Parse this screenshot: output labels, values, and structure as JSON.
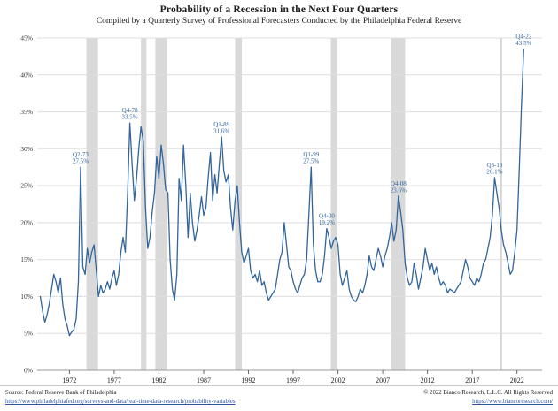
{
  "header": {
    "title": "Probability of a Recession in the Next Four Quarters",
    "subtitle": "Compiled by a Quarterly Survey of Professional Forecasters Conducted by the Philadelphia Federal Reserve"
  },
  "footer": {
    "source_label": "Source: Federal Reserve Bank of Philadelphia",
    "source_url": "https://www.philadelphiafed.org/surveys-and-data/real-time-data-research/probability-variables",
    "copyright": "© 2022 Bianco Research, L.L.C. All Rights Reserved",
    "site_url": "https://www.biancoresearch.com/"
  },
  "colors": {
    "line": "#31659c",
    "annotation": "#31659c",
    "recession_band": "#d9d9d9",
    "gridline": "#dedede",
    "link": "#2d53a0"
  },
  "chart_data": {
    "type": "line",
    "title": "Probability of a Recession in the Next Four Quarters",
    "subtitle": "Compiled by a Quarterly Survey of Professional Forecasters Conducted by the Philadelphia Federal Reserve",
    "xlabel": "",
    "ylabel": "",
    "ylim": [
      0,
      45
    ],
    "ytick_step": 5,
    "ytick_format": "percent",
    "xlim": [
      1968.4,
      2024.8
    ],
    "xticks": [
      1972,
      1977,
      1982,
      1987,
      1992,
      1997,
      2002,
      2007,
      2012,
      2017,
      2022
    ],
    "grid": "horizontal",
    "legend": "none",
    "line_color": "#31659c",
    "band_color": "#d9d9d9",
    "grid_color": "#dedede",
    "recession_bands": [
      [
        1973.9,
        1975.2
      ],
      [
        1980.0,
        1980.6
      ],
      [
        1981.6,
        1982.9
      ],
      [
        1990.5,
        1991.25
      ],
      [
        2001.2,
        2001.9
      ],
      [
        2007.95,
        2009.5
      ],
      [
        2020.1,
        2020.35
      ]
    ],
    "series": [
      {
        "name": "Probability of recession (mean, SPF)",
        "x_start": 1968.75,
        "x_step": 0.25,
        "values": [
          10,
          8,
          6.5,
          7.5,
          9,
          11,
          13,
          12,
          10.5,
          12.5,
          9,
          7,
          6,
          4.7,
          5.2,
          5.5,
          7,
          12,
          27.5,
          14,
          13,
          16.5,
          14.5,
          16,
          17,
          13.5,
          10,
          11.5,
          10.5,
          11,
          12,
          11,
          12.5,
          13.5,
          11.5,
          13,
          16,
          18,
          16,
          24,
          33.5,
          28,
          23,
          26,
          30,
          33,
          31,
          22,
          16.5,
          18,
          21.5,
          24,
          29,
          26,
          30.5,
          28,
          24.5,
          24,
          15,
          11,
          9.5,
          13,
          26,
          23,
          30.5,
          25,
          18,
          24,
          20,
          17.5,
          19,
          21,
          23.5,
          21,
          22,
          26,
          29.5,
          23,
          26.5,
          24,
          28,
          31.6,
          27,
          25.5,
          26.5,
          22,
          19,
          23,
          25,
          20,
          16,
          14.5,
          15.5,
          16.5,
          13.5,
          12.5,
          13,
          12,
          13.5,
          11.5,
          12,
          10.5,
          9.5,
          10,
          10.5,
          11,
          13,
          15,
          16,
          20,
          17,
          14,
          13.5,
          12,
          11,
          10.5,
          11.5,
          12.5,
          13,
          15,
          21,
          27.5,
          17,
          13.5,
          12,
          12,
          13,
          15.5,
          19.2,
          18,
          16.5,
          17.5,
          18,
          17,
          13,
          11.5,
          12.5,
          13.5,
          11,
          10,
          9.5,
          9.3,
          10,
          11,
          10.5,
          11.5,
          13,
          15.5,
          14,
          13.5,
          15,
          16.5,
          15.5,
          14,
          15.5,
          16.5,
          18,
          20,
          17.5,
          19,
          23.6,
          21.5,
          19,
          14.5,
          12.5,
          11.5,
          12,
          14.5,
          13,
          11,
          12.5,
          14,
          16.5,
          15,
          13.5,
          14.5,
          13,
          14,
          12.5,
          11.5,
          12,
          11.5,
          10.5,
          11,
          10.8,
          10.5,
          11,
          11.5,
          12,
          13.5,
          15,
          14,
          12.5,
          12,
          11.5,
          12.5,
          12,
          13,
          14.5,
          15,
          16.5,
          18,
          21,
          26.1,
          24,
          22,
          19,
          17,
          16,
          14.5,
          13,
          13.5,
          16,
          19,
          27,
          36,
          43.5
        ]
      }
    ],
    "annotations": [
      {
        "label": "Q2-73",
        "value": "27.5%",
        "x": 1973.25,
        "y": 27.5
      },
      {
        "label": "Q4-78",
        "value": "33.5%",
        "x": 1978.75,
        "y": 33.5
      },
      {
        "label": "Q1-89",
        "value": "31.6%",
        "x": 1989.0,
        "y": 31.6
      },
      {
        "label": "Q1-99",
        "value": "27.5%",
        "x": 1999.0,
        "y": 27.5
      },
      {
        "label": "Q4-00",
        "value": "19.2%",
        "x": 2000.75,
        "y": 19.2
      },
      {
        "label": "Q4-08",
        "value": "23.6%",
        "x": 2008.75,
        "y": 23.6
      },
      {
        "label": "Q3-19",
        "value": "26.1%",
        "x": 2019.5,
        "y": 26.1
      },
      {
        "label": "Q4-22",
        "value": "43.5%",
        "x": 2022.75,
        "y": 43.5
      }
    ]
  }
}
